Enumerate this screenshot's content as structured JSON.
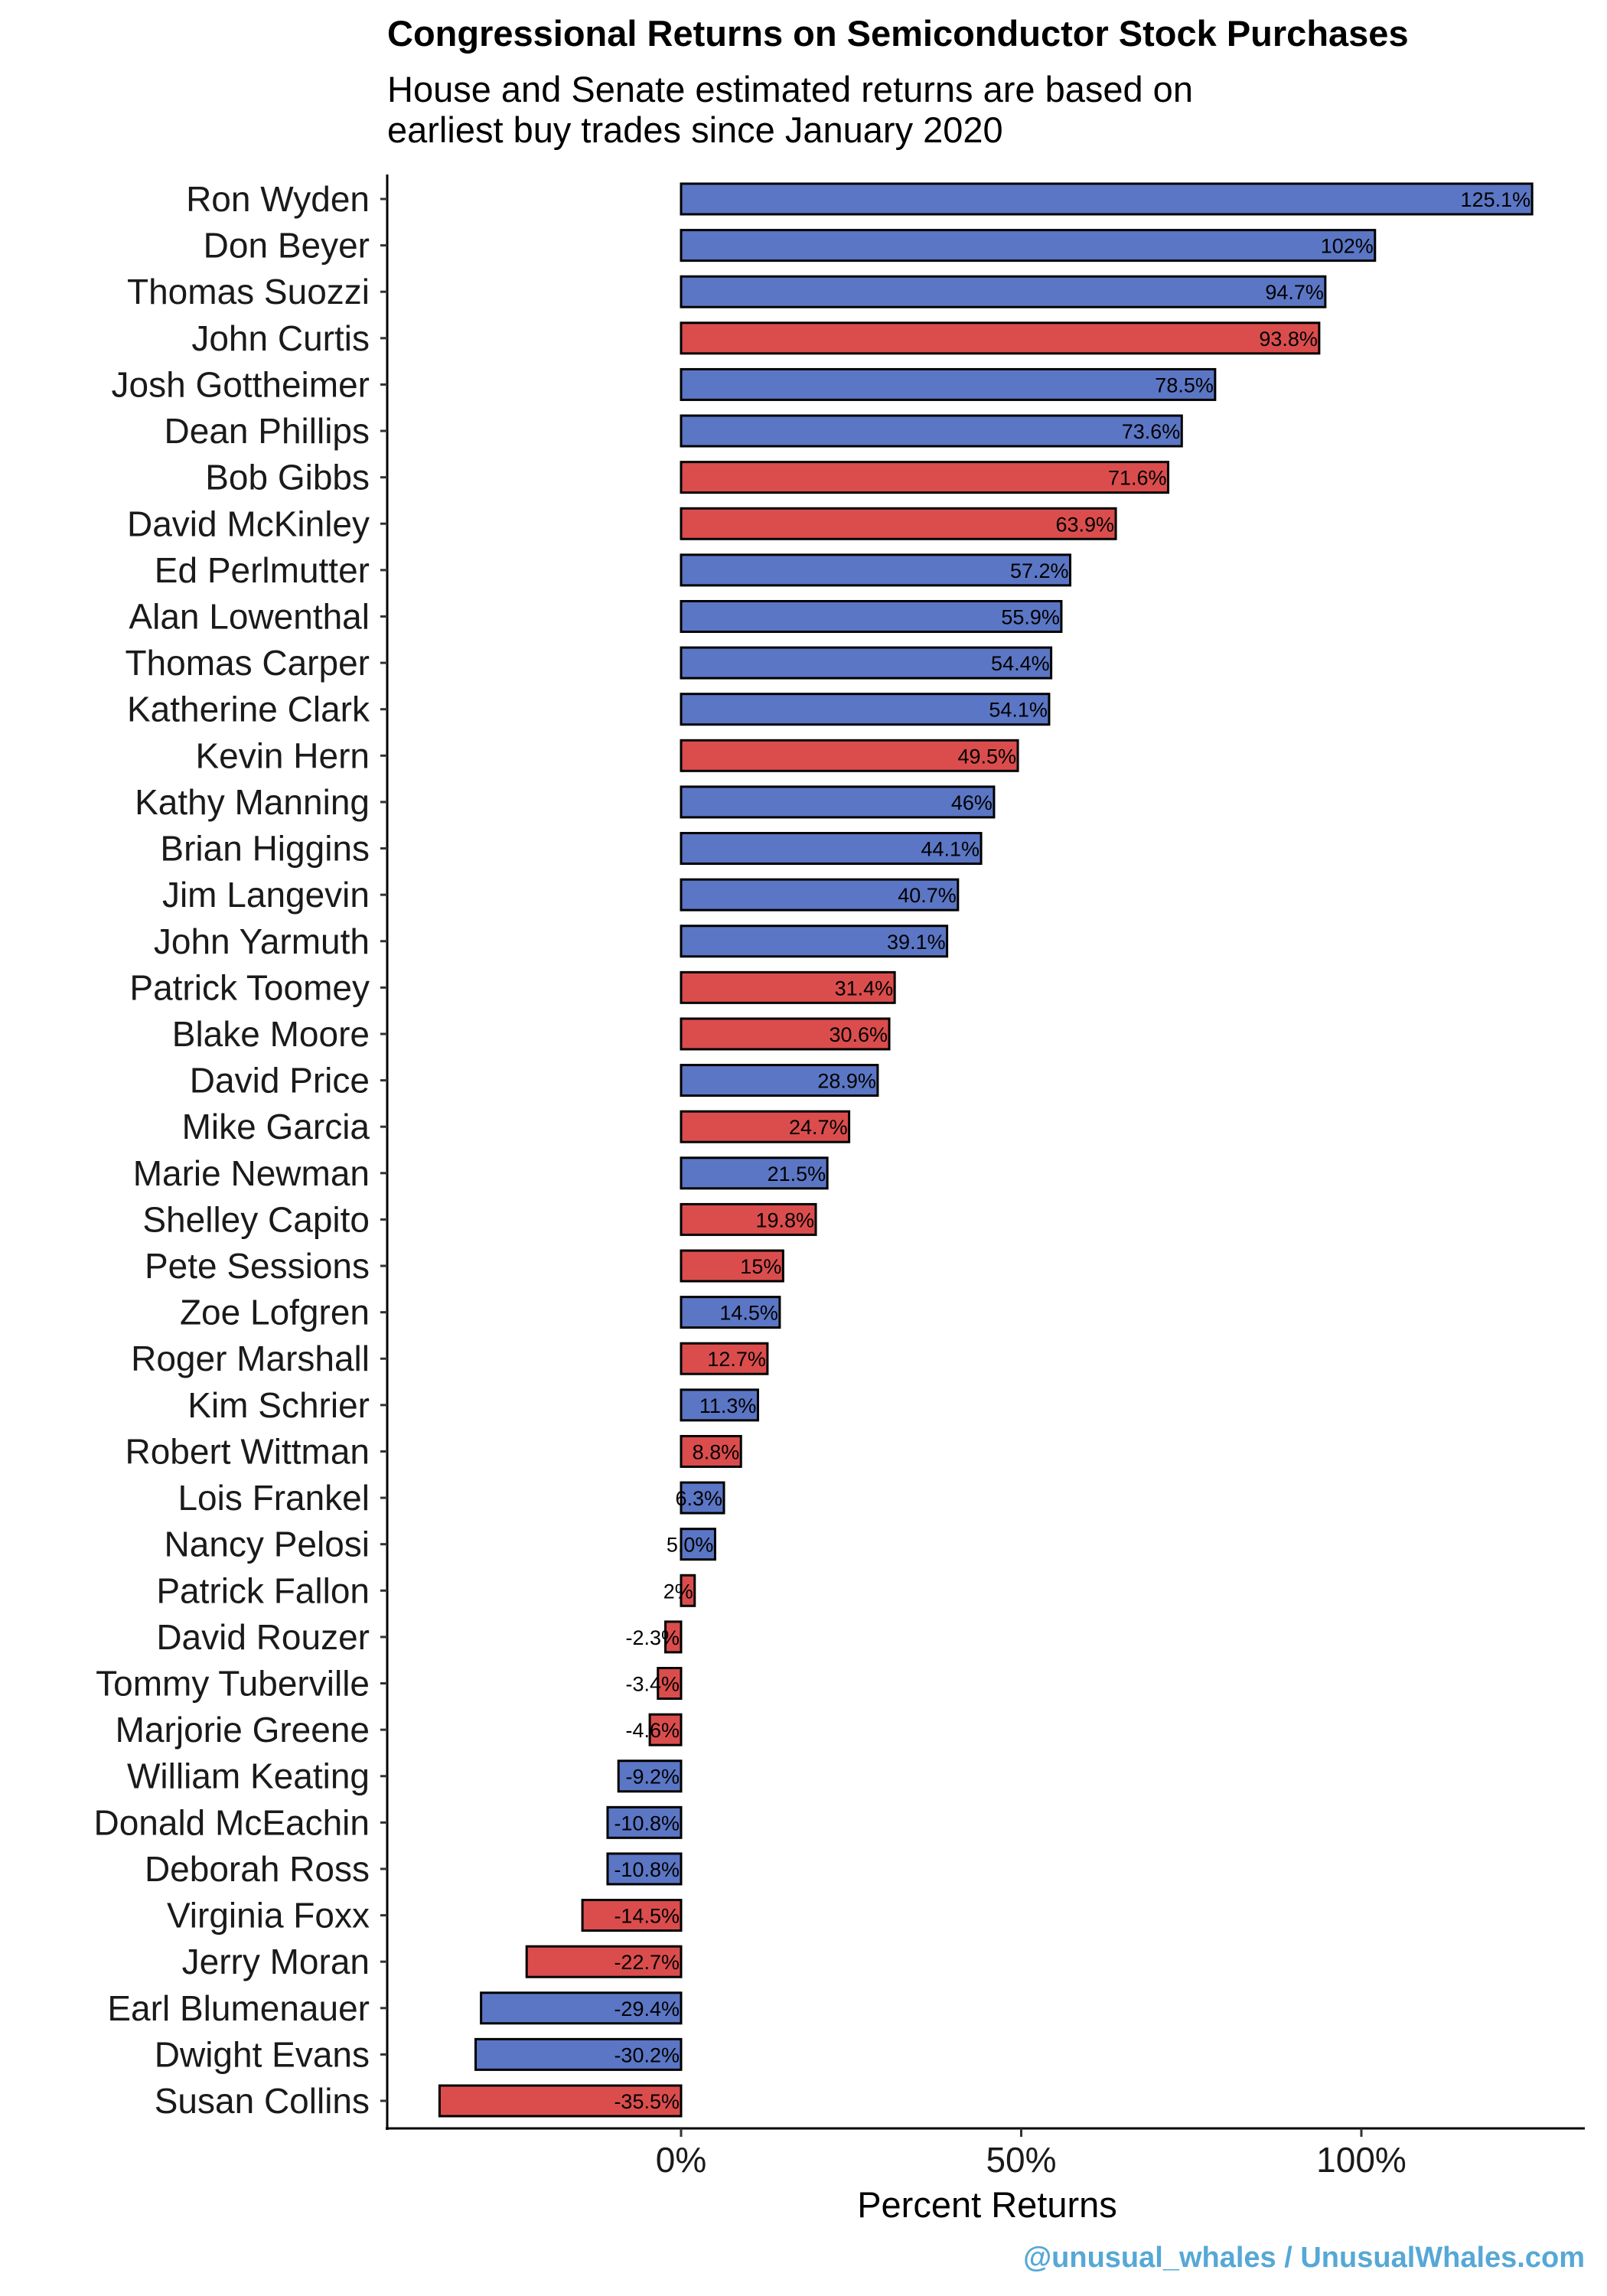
{
  "chart_data": {
    "type": "bar",
    "orientation": "horizontal",
    "title": "Congressional Returns on Semiconductor Stock Purchases",
    "subtitle": [
      "House and Senate estimated returns are based on",
      "earliest buy trades since January 2020"
    ],
    "xlabel": "Percent Returns",
    "ylabel": "",
    "xlim": [
      -44,
      133
    ],
    "x_ticks": [
      0,
      50,
      100
    ],
    "x_tick_labels": [
      "0%",
      "50%",
      "100%"
    ],
    "grid": false,
    "legend": "none",
    "colors": {
      "Democrat": "#5B76C4",
      "Republican": "#DB4D4D"
    },
    "categories": [
      "Ron Wyden",
      "Don Beyer",
      "Thomas Suozzi",
      "John Curtis",
      "Josh Gottheimer",
      "Dean Phillips",
      "Bob Gibbs",
      "David McKinley",
      "Ed Perlmutter",
      "Alan Lowenthal",
      "Thomas Carper",
      "Katherine Clark",
      "Kevin Hern",
      "Kathy Manning",
      "Brian Higgins",
      "Jim Langevin",
      "John Yarmuth",
      "Patrick Toomey",
      "Blake Moore",
      "David Price",
      "Mike Garcia",
      "Marie Newman",
      "Shelley Capito",
      "Pete Sessions",
      "Zoe Lofgren",
      "Roger Marshall",
      "Kim Schrier",
      "Robert Wittman",
      "Lois Frankel",
      "Nancy Pelosi",
      "Patrick Fallon",
      "David Rouzer",
      "Tommy Tuberville",
      "Marjorie Greene",
      "William Keating",
      "Donald McEachin",
      "Deborah Ross",
      "Virginia Foxx",
      "Jerry Moran",
      "Earl Blumenauer",
      "Dwight Evans",
      "Susan Collins"
    ],
    "values": [
      125.1,
      102,
      94.7,
      93.8,
      78.5,
      73.6,
      71.6,
      63.9,
      57.2,
      55.9,
      54.4,
      54.1,
      49.5,
      46,
      44.1,
      40.7,
      39.1,
      31.4,
      30.6,
      28.9,
      24.7,
      21.5,
      19.8,
      15,
      14.5,
      12.7,
      11.3,
      8.8,
      6.3,
      5.0,
      2,
      -2.3,
      -3.4,
      -4.6,
      -9.2,
      -10.8,
      -10.8,
      -14.5,
      -22.7,
      -29.4,
      -30.2,
      -35.5
    ],
    "value_labels": [
      "125.1%",
      "102%",
      "94.7%",
      "93.8%",
      "78.5%",
      "73.6%",
      "71.6%",
      "63.9%",
      "57.2%",
      "55.9%",
      "54.4%",
      "54.1%",
      "49.5%",
      "46%",
      "44.1%",
      "40.7%",
      "39.1%",
      "31.4%",
      "30.6%",
      "28.9%",
      "24.7%",
      "21.5%",
      "19.8%",
      "15%",
      "14.5%",
      "12.7%",
      "11.3%",
      "8.8%",
      "6.3%",
      "5.0%",
      "2%",
      "-2.3%",
      "-3.4%",
      "-4.6%",
      "-9.2%",
      "-10.8%",
      "-10.8%",
      "-14.5%",
      "-22.7%",
      "-29.4%",
      "-30.2%",
      "-35.5%"
    ],
    "party": [
      "D",
      "D",
      "D",
      "R",
      "D",
      "D",
      "R",
      "R",
      "D",
      "D",
      "D",
      "D",
      "R",
      "D",
      "D",
      "D",
      "D",
      "R",
      "R",
      "D",
      "R",
      "D",
      "R",
      "R",
      "D",
      "R",
      "D",
      "R",
      "D",
      "D",
      "R",
      "R",
      "R",
      "R",
      "D",
      "D",
      "D",
      "R",
      "R",
      "D",
      "D",
      "R"
    ]
  },
  "watermark": "@unusual_whales / UnusualWhales.com"
}
